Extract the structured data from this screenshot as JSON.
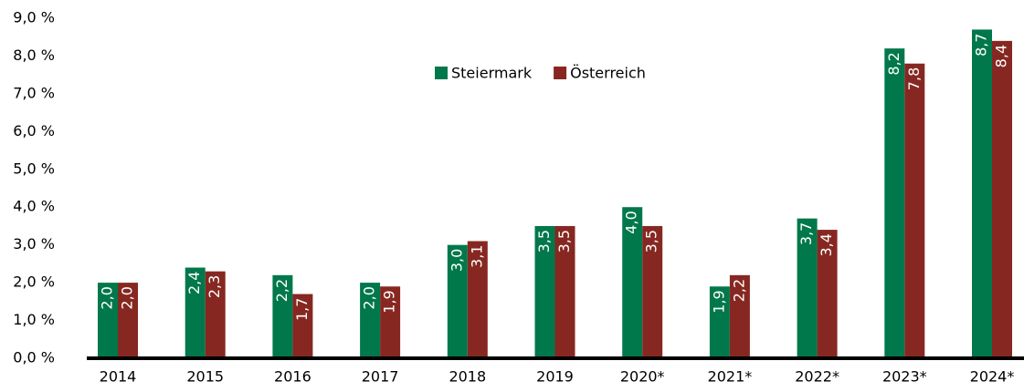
{
  "chart_data": {
    "type": "bar",
    "categories": [
      "2014",
      "2015",
      "2016",
      "2017",
      "2018",
      "2019",
      "2020*",
      "2021*",
      "2022*",
      "2023*",
      "2024*"
    ],
    "series": [
      {
        "name": "Steiermark",
        "color": "#00784b",
        "values": [
          2.0,
          2.4,
          2.2,
          2.0,
          3.0,
          3.5,
          4.0,
          1.9,
          3.7,
          8.2,
          8.7
        ],
        "value_labels": [
          "2,0",
          "2,4",
          "2,2",
          "2,0",
          "3,0",
          "3,5",
          "4,0",
          "1,9",
          "3,7",
          "8,2",
          "8,7"
        ]
      },
      {
        "name": "Österreich",
        "color": "#862821",
        "values": [
          2.0,
          2.3,
          1.7,
          1.9,
          3.1,
          3.5,
          3.5,
          2.2,
          3.4,
          7.8,
          8.4
        ],
        "value_labels": [
          "2,0",
          "2,3",
          "1,7",
          "1,9",
          "3,1",
          "3,5",
          "3,5",
          "2,2",
          "3,4",
          "7,8",
          "8,4"
        ]
      }
    ],
    "ylim": [
      0,
      9
    ],
    "yticks": [
      {
        "value": 0,
        "label": "0,0 %"
      },
      {
        "value": 1,
        "label": "1,0 %"
      },
      {
        "value": 2,
        "label": "2,0 %"
      },
      {
        "value": 3,
        "label": "3,0 %"
      },
      {
        "value": 4,
        "label": "4,0 %"
      },
      {
        "value": 5,
        "label": "5,0 %"
      },
      {
        "value": 6,
        "label": "6,0 %"
      },
      {
        "value": 7,
        "label": "7,0 %"
      },
      {
        "value": 8,
        "label": "8,0 %"
      },
      {
        "value": 9,
        "label": "9,0 %"
      }
    ],
    "grid": false,
    "legend": "top"
  }
}
